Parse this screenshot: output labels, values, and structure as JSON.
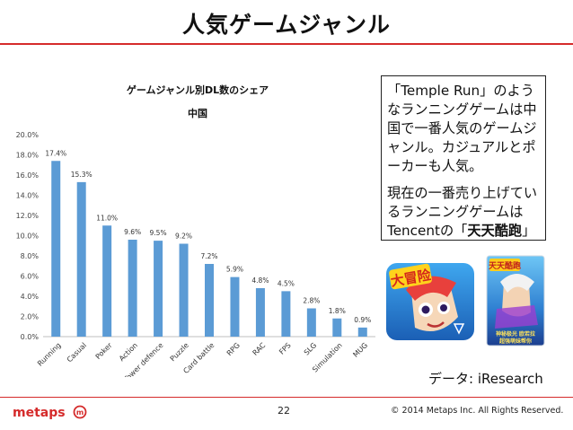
{
  "slide": {
    "title": "人気ゲームジャンル",
    "page_number": "22",
    "copyright": "© 2014 Metaps Inc. All Rights Reserved.",
    "source": "データ: iResearch",
    "logo_text": "metaps"
  },
  "note": {
    "para1": "「Temple Run」のようなランニングゲームは中国で一番人気のゲームジャンル。カジュアルとポーカーも人気。",
    "para2_prefix": "現在の一番売り上げているランニングゲームはTencentの「",
    "para2_bold": "天天酷跑",
    "para2_suffix": "」"
  },
  "colors": {
    "bar": "#5b9bd5",
    "accent": "#d52b2b"
  },
  "chart_data": {
    "type": "bar",
    "title": "ゲームジャンル別DL数のシェア",
    "subtitle": "中国",
    "categories": [
      "Running",
      "Casual",
      "Poker",
      "Action",
      "Tower defence",
      "Puzzle",
      "Card battle",
      "RPG",
      "RAC",
      "FPS",
      "SLG",
      "Simulation",
      "MUG"
    ],
    "values": [
      17.4,
      15.3,
      11.0,
      9.6,
      9.5,
      9.2,
      7.2,
      5.9,
      4.8,
      4.5,
      2.8,
      1.8,
      0.9
    ],
    "value_labels": [
      "17.4%",
      "15.3%",
      "11.0%",
      "9.6%",
      "9.5%",
      "9.2%",
      "7.2%",
      "5.9%",
      "4.8%",
      "4.5%",
      "2.8%",
      "1.8%",
      "0.9%"
    ],
    "yticks": [
      0,
      2,
      4,
      6,
      8,
      10,
      12,
      14,
      16,
      18,
      20
    ],
    "ytick_labels": [
      "0.0%",
      "2.0%",
      "4.0%",
      "6.0%",
      "8.0%",
      "10.0%",
      "12.0%",
      "14.0%",
      "16.0%",
      "18.0%",
      "20.0%"
    ],
    "ylim": [
      0,
      20
    ],
    "xlabel": "",
    "ylabel": "",
    "grid": false,
    "legend": "none"
  }
}
